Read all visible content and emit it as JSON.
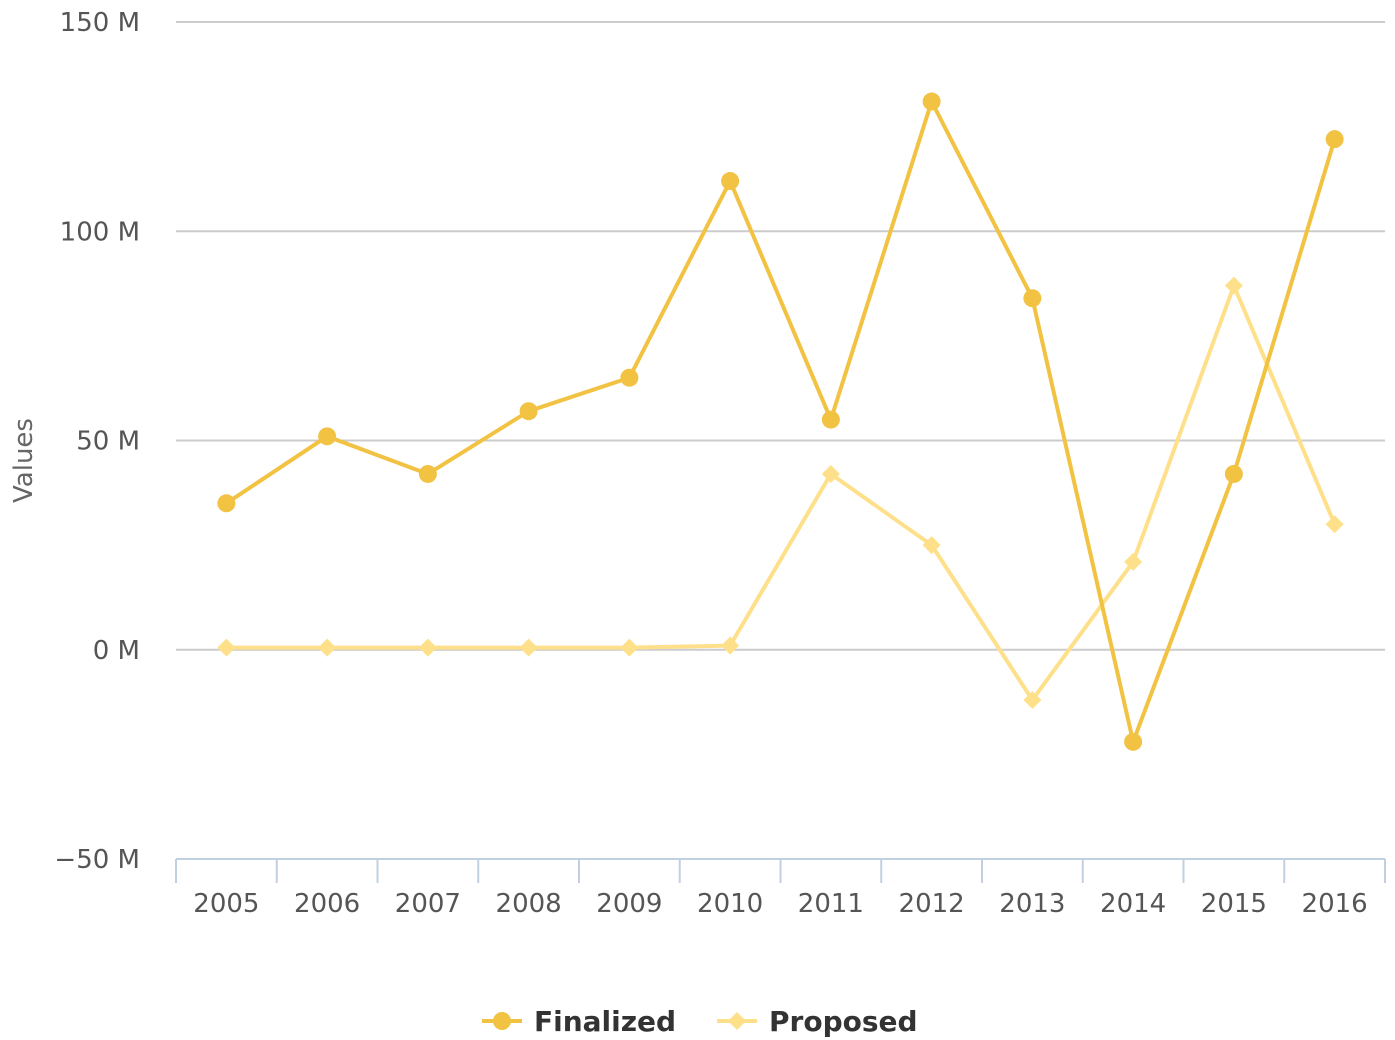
{
  "chart_data": {
    "type": "line",
    "title": "",
    "xlabel": "",
    "ylabel": "Values",
    "categories": [
      "2005",
      "2006",
      "2007",
      "2008",
      "2009",
      "2010",
      "2011",
      "2012",
      "2013",
      "2014",
      "2015",
      "2016"
    ],
    "ylim": [
      -50,
      150
    ],
    "yticks": [
      -50,
      0,
      50,
      100,
      150
    ],
    "ytick_labels": [
      "−50 M",
      "0 M",
      "50 M",
      "100 M",
      "150 M"
    ],
    "grid": true,
    "legend_position": "bottom-center",
    "series": [
      {
        "name": "Finalized",
        "color": "#f2c243",
        "marker": "circle",
        "values": [
          35,
          51,
          42,
          57,
          65,
          112,
          55,
          131,
          84,
          -22,
          42,
          122
        ]
      },
      {
        "name": "Proposed",
        "color": "#ffe08a",
        "marker": "diamond",
        "values": [
          0.5,
          0.5,
          0.5,
          0.5,
          0.5,
          1,
          42,
          25,
          -12,
          21,
          87,
          30
        ]
      }
    ]
  }
}
